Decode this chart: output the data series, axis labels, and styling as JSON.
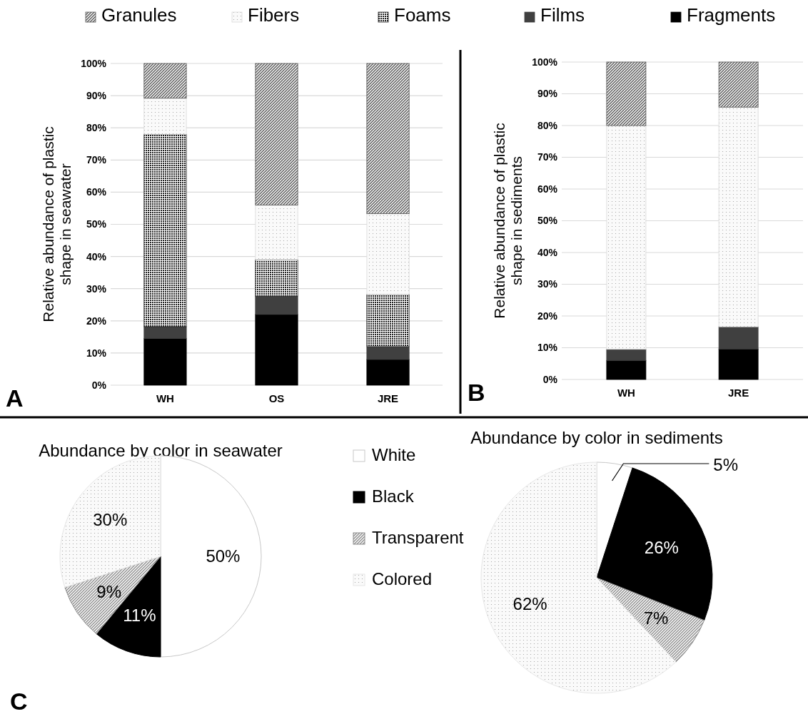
{
  "chart_data": [
    {
      "type": "bar",
      "stacked": true,
      "ylabel": "Relative abundance of plastic shape in seawater",
      "categories": [
        "WH",
        "OS",
        "JRE"
      ],
      "ylim": [
        0,
        100
      ],
      "yticks": [
        {
          "value": 0,
          "label": "0%"
        },
        {
          "value": 10,
          "label": "10%"
        },
        {
          "value": 20,
          "label": "20%"
        },
        {
          "value": 30,
          "label": "30%"
        },
        {
          "value": 40,
          "label": "40%"
        },
        {
          "value": 50,
          "label": "50%"
        },
        {
          "value": 60,
          "label": "60%"
        },
        {
          "value": 70,
          "label": "70%"
        },
        {
          "value": 80,
          "label": "80%"
        },
        {
          "value": 90,
          "label": "90%"
        },
        {
          "value": 100,
          "label": "100%"
        }
      ],
      "grid": "y",
      "legend": "top",
      "annotations": [
        "A"
      ],
      "series": [
        {
          "name": "Fragments",
          "color": "#000000",
          "values": [
            14.5,
            22,
            8
          ]
        },
        {
          "name": "Films",
          "color": "#404040",
          "values": [
            3.7,
            5.7,
            4
          ]
        },
        {
          "name": "Foams",
          "color": "#222222",
          "values": [
            59.8,
            11.3,
            16.2
          ]
        },
        {
          "name": "Fibers",
          "color": "#d9d9d9",
          "values": [
            11.2,
            17,
            25.1
          ]
        },
        {
          "name": "Granules",
          "color": "#555555",
          "values": [
            10.8,
            44,
            46.7
          ]
        }
      ]
    },
    {
      "type": "bar",
      "stacked": true,
      "ylabel": "Relative abundance of plastic shape in sediments",
      "categories": [
        "WH",
        "JRE"
      ],
      "ylim": [
        0,
        100
      ],
      "yticks": [
        {
          "value": 0,
          "label": "0%"
        },
        {
          "value": 10,
          "label": "10%"
        },
        {
          "value": 20,
          "label": "20%"
        },
        {
          "value": 30,
          "label": "30%"
        },
        {
          "value": 40,
          "label": "40%"
        },
        {
          "value": 50,
          "label": "50%"
        },
        {
          "value": 60,
          "label": "60%"
        },
        {
          "value": 70,
          "label": "70%"
        },
        {
          "value": 80,
          "label": "80%"
        },
        {
          "value": 90,
          "label": "90%"
        },
        {
          "value": 100,
          "label": "100%"
        }
      ],
      "grid": "y",
      "annotations": [
        "B"
      ],
      "series": [
        {
          "color": "#000000",
          "values": [
            6,
            9.6
          ]
        },
        {
          "color": "#404040",
          "values": [
            3.5,
            7
          ]
        },
        {
          "color": "#d9d9d9",
          "values": [
            70.5,
            69.2
          ]
        },
        {
          "color": "#555555",
          "values": [
            20,
            14.2
          ]
        }
      ]
    },
    {
      "type": "pie",
      "title": "Abundance by color in seawater",
      "categories": [
        "White",
        "Black",
        "Transparent",
        "Colored"
      ],
      "values": [
        50,
        11,
        9,
        30
      ],
      "value_labels": [
        "50%",
        "11%",
        "9%",
        "30%"
      ],
      "colors": [
        "#ffffff",
        "#000000",
        "#8c8c8c",
        "#e6e6e6"
      ],
      "legend": "right",
      "annotations": [
        "C"
      ]
    },
    {
      "type": "pie",
      "title": "Abundance by color in sediments",
      "categories": [
        null,
        null,
        null,
        null
      ],
      "values": [
        5,
        26,
        7,
        62
      ],
      "value_labels": [
        "5%",
        "26%",
        "7%",
        "62%"
      ],
      "colors": [
        "#ffffff",
        "#000000",
        "#8c8c8c",
        "#e6e6e6"
      ]
    }
  ]
}
